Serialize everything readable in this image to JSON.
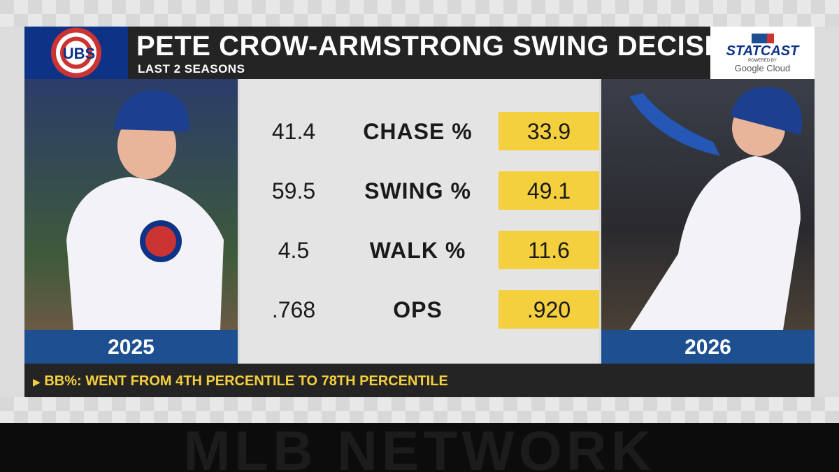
{
  "header": {
    "logo": "UBS",
    "title": "PETE CROW-ARMSTRONG SWING DECISIONS",
    "subtitle": "LAST 2 SEASONS",
    "sponsor": {
      "brand": "STATCAST",
      "tagline": "POWERED BY",
      "partner": "Google Cloud"
    }
  },
  "players": [
    {
      "year": "2025"
    },
    {
      "year": "2026"
    }
  ],
  "table": {
    "rows": [
      [
        "41.4",
        "CHASE %",
        "33.9"
      ],
      [
        "59.5",
        "SWING %",
        "49.1"
      ],
      [
        "4.5",
        "WALK %",
        "11.6"
      ],
      [
        ".768",
        "OPS",
        ".920"
      ]
    ]
  },
  "footnote": "BB%: WENT FROM 4TH PERCENTILE TO 78TH PERCENTILE",
  "footer": {
    "watermark": "MLB NETWORK"
  }
}
